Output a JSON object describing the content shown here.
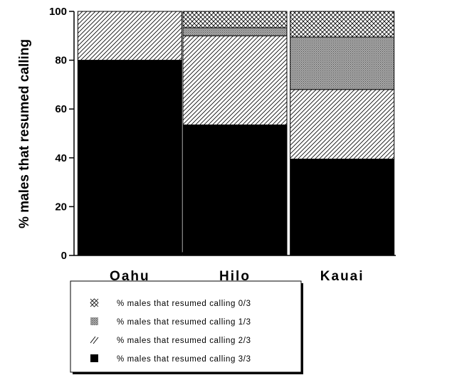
{
  "chart_data": {
    "type": "bar",
    "stacked": true,
    "percent": true,
    "categories": [
      "Oahu",
      "Hilo",
      "Kauai"
    ],
    "ylabel": "% males that resumed calling",
    "xlabel": "",
    "ylim": [
      0,
      100
    ],
    "yticks": [
      0,
      20,
      40,
      60,
      80,
      100
    ],
    "legend_position": "bottom",
    "series": [
      {
        "name": "% males that resumed calling 3/3",
        "values": [
          80,
          53.5,
          39.5
        ],
        "pattern": "solid",
        "color": "#000000"
      },
      {
        "name": "% males that resumed calling 2/3",
        "values": [
          20,
          36.5,
          28.5
        ],
        "pattern": "diagonal",
        "color": "#000000"
      },
      {
        "name": "% males that resumed calling 1/3",
        "values": [
          0,
          3.3,
          21.5
        ],
        "pattern": "gray-dots",
        "color": "#8c8c8c"
      },
      {
        "name": "% males that resumed calling 0/3",
        "values": [
          0,
          6.7,
          10.5
        ],
        "pattern": "crosshatch",
        "color": "#000000"
      }
    ],
    "legend_order": [
      3,
      2,
      1,
      0
    ],
    "annotation": {
      "type": "line",
      "between": [
        "Oahu",
        "Hilo"
      ],
      "value": 1.2
    }
  }
}
